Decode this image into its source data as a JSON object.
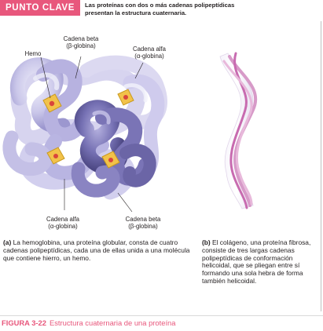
{
  "header": {
    "badge": "PUNTO CLAVE",
    "line1": "Las proteínas con dos o más cadenas polipeptídicas",
    "line2": "presentan la estructura cuaternaria."
  },
  "labels": {
    "beta_top_1": "Cadena beta",
    "beta_top_2": "(β-globina)",
    "alpha_top_1": "Cadena alfa",
    "alpha_top_2": "(α-globina)",
    "hemo": "Hemo",
    "alpha_bottom_1": "Cadena alfa",
    "alpha_bottom_2": "(α-globina)",
    "beta_bottom_1": "Cadena beta",
    "beta_bottom_2": "(β-globina)"
  },
  "captions": {
    "a_tag": "(a)",
    "a_text": "La hemoglobina, una proteína globular, consta de cuatro cadenas polipeptídicas, cada una de ellas unida a una molécula que contiene hierro, un hemo.",
    "b_tag": "(b)",
    "b_text": "El colágeno, una proteína fibrosa, consiste de tres largas cadenas polipeptídicas de conformación helicoidal, que se pliegan entre sí formando una sola hebra de forma también helicoidal."
  },
  "figure": {
    "number": "FIGURA 3-22",
    "title": "Estructura cuaternaria de una proteína"
  },
  "colors": {
    "accent": "#e8577c",
    "chain_light": "#c9c6e8",
    "chain_mid": "#a9a4d8",
    "chain_dark": "#6d67a8",
    "heme": "#f2c24a",
    "collagen": "#d79ac8"
  }
}
